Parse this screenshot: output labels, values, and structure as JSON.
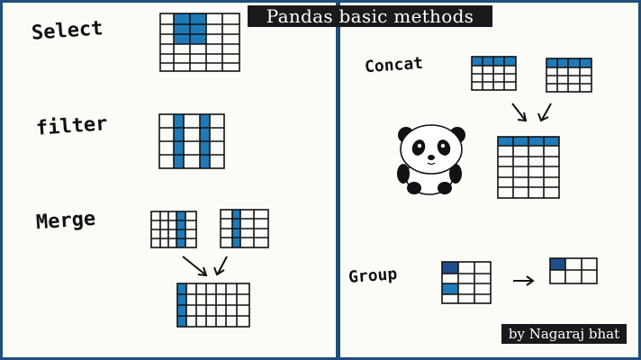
{
  "title": "Pandas basic methods",
  "credit": "by Nagaraj bhat",
  "labels": {
    "select": "Select",
    "filter": "filter",
    "merge": "Merge",
    "concat": "Concat",
    "group": "Group"
  },
  "colors": {
    "frame": "#1f4e79",
    "highlight": "#1f7ab8",
    "ink": "#111111",
    "paper": "#fbfbf7"
  },
  "icons": [
    "panda-icon",
    "arrow-icon"
  ]
}
